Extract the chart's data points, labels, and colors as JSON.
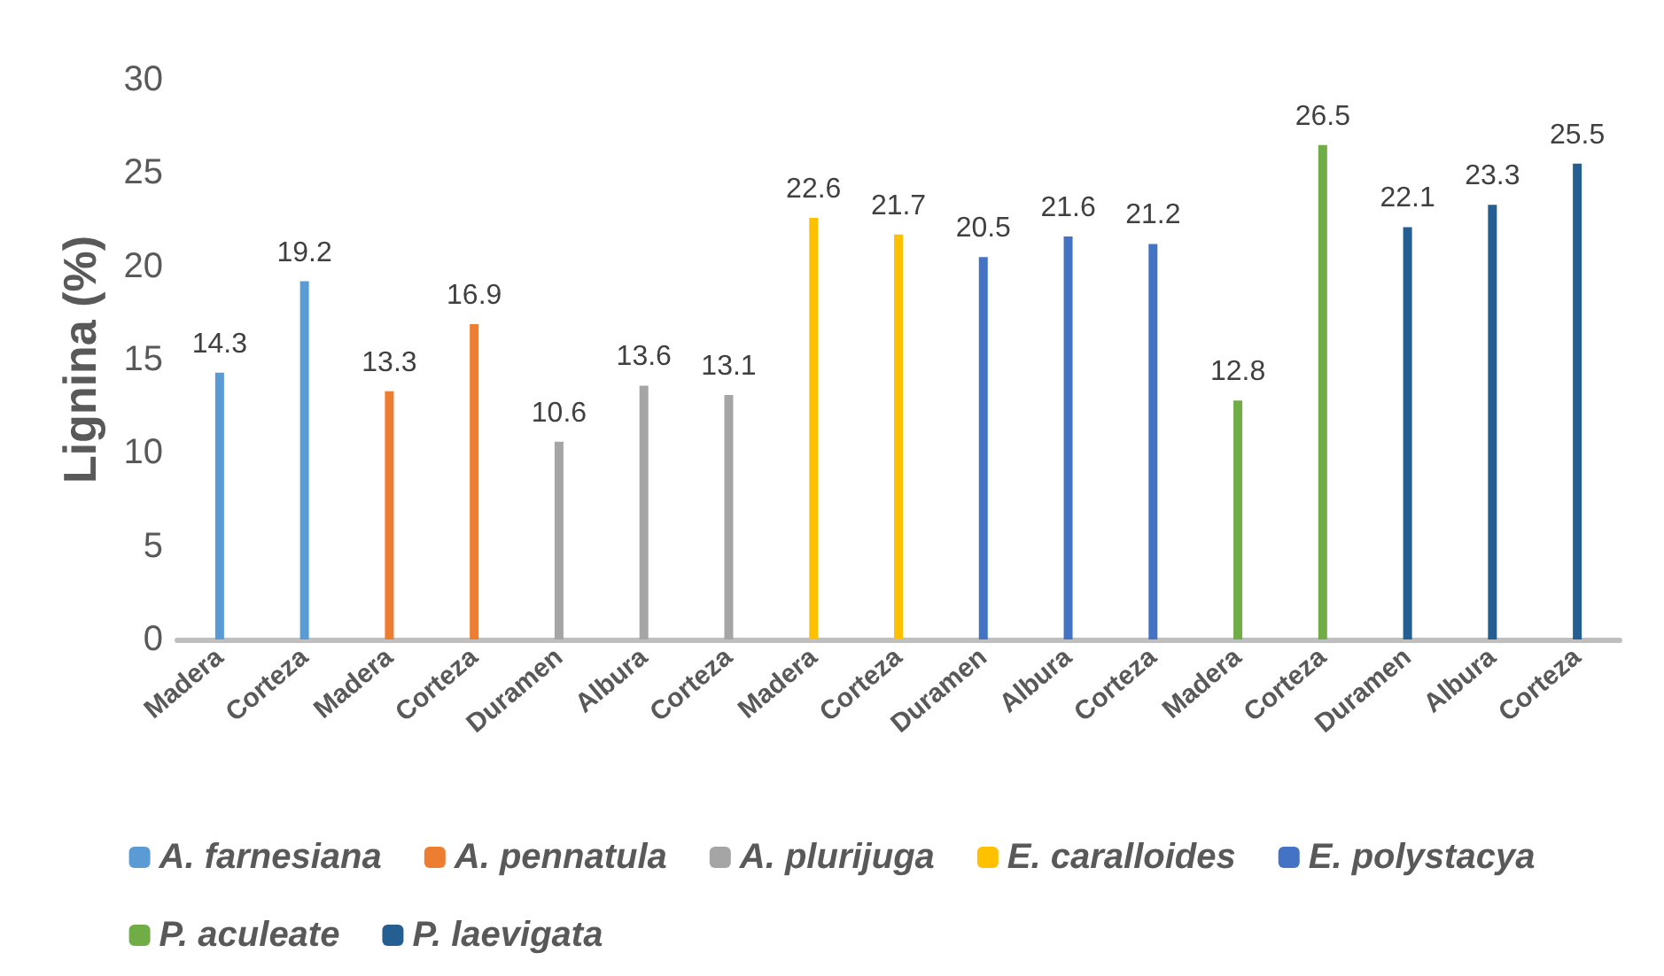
{
  "chart_data": {
    "type": "bar",
    "ylabel": "Lignina (%)",
    "categories": [
      "Madera",
      "Corteza",
      "Madera",
      "Corteza",
      "Duramen",
      "Albura",
      "Corteza",
      "Madera",
      "Corteza",
      "Duramen",
      "Albura",
      "Corteza",
      "Madera",
      "Corteza",
      "Duramen",
      "Albura",
      "Corteza"
    ],
    "series": [
      {
        "name": "A. farnesiana",
        "color": "#5b9bd5",
        "values": [
          14.3,
          19.2,
          null,
          null,
          null,
          null,
          null,
          null,
          null,
          null,
          null,
          null,
          null,
          null,
          null,
          null,
          null
        ]
      },
      {
        "name": "A. pennatula",
        "color": "#ed7d31",
        "values": [
          null,
          null,
          13.3,
          16.9,
          null,
          null,
          null,
          null,
          null,
          null,
          null,
          null,
          null,
          null,
          null,
          null,
          null
        ]
      },
      {
        "name": "A. plurijuga",
        "color": "#a5a5a5",
        "values": [
          null,
          null,
          null,
          null,
          10.6,
          13.6,
          13.1,
          null,
          null,
          null,
          null,
          null,
          null,
          null,
          null,
          null,
          null
        ]
      },
      {
        "name": "E. caralloides",
        "color": "#ffc000",
        "values": [
          null,
          null,
          null,
          null,
          null,
          null,
          null,
          22.6,
          21.7,
          null,
          null,
          null,
          null,
          null,
          null,
          null,
          null
        ]
      },
      {
        "name": "E. polystacya",
        "color": "#4472c4",
        "values": [
          null,
          null,
          null,
          null,
          null,
          null,
          null,
          null,
          null,
          20.5,
          21.6,
          21.2,
          null,
          null,
          null,
          null,
          null
        ]
      },
      {
        "name": "P. aculeate",
        "color": "#70ad47",
        "values": [
          null,
          null,
          null,
          null,
          null,
          null,
          null,
          null,
          null,
          null,
          null,
          null,
          12.8,
          26.5,
          null,
          null,
          null
        ]
      },
      {
        "name": "P. laevigata",
        "color": "#255e91",
        "values": [
          null,
          null,
          null,
          null,
          null,
          null,
          null,
          null,
          null,
          null,
          null,
          null,
          null,
          null,
          22.1,
          23.3,
          25.5
        ]
      }
    ],
    "ylim": [
      0,
      30
    ],
    "yticks": [
      0,
      5,
      10,
      15,
      20,
      25,
      30
    ],
    "grid": false,
    "legend": "bottom",
    "data_labels": true
  }
}
